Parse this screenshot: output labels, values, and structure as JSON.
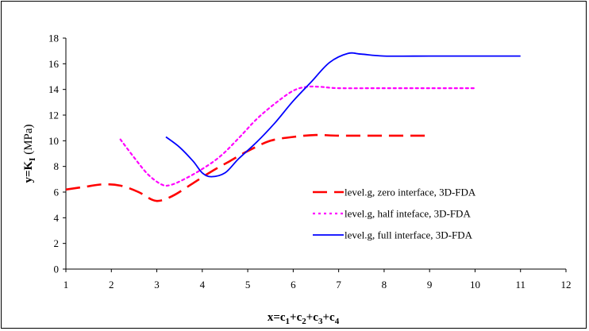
{
  "chart_data": {
    "type": "line",
    "title": "",
    "xlabel": {
      "main": "x=c",
      "parts": [
        [
          "1",
          "+c"
        ],
        [
          "2",
          "+c"
        ],
        [
          "3",
          "+c"
        ],
        [
          "4",
          ""
        ]
      ]
    },
    "ylabel": {
      "prefix": "y=K",
      "sub": "I",
      "suffix": " (MPa)"
    },
    "xlim": [
      1,
      12
    ],
    "ylim": [
      0,
      18
    ],
    "x_ticks": [
      1,
      2,
      3,
      4,
      5,
      6,
      7,
      8,
      9,
      10,
      11,
      12
    ],
    "y_ticks": [
      0,
      2,
      4,
      6,
      8,
      10,
      12,
      14,
      16,
      18
    ],
    "grid": false,
    "legend_position": "right-middle",
    "series": [
      {
        "name": "level.g, zero interface, 3D-FDA",
        "color": "#ff0000",
        "dash": "long-dash",
        "points": [
          [
            1.0,
            6.2
          ],
          [
            1.4,
            6.4
          ],
          [
            1.8,
            6.6
          ],
          [
            2.2,
            6.5
          ],
          [
            2.6,
            6.0
          ],
          [
            2.9,
            5.4
          ],
          [
            3.1,
            5.35
          ],
          [
            3.4,
            5.8
          ],
          [
            3.8,
            6.7
          ],
          [
            4.2,
            7.6
          ],
          [
            4.6,
            8.4
          ],
          [
            5.0,
            9.2
          ],
          [
            5.5,
            10.0
          ],
          [
            6.0,
            10.3
          ],
          [
            6.5,
            10.45
          ],
          [
            7.0,
            10.4
          ],
          [
            8.0,
            10.4
          ],
          [
            9.0,
            10.4
          ]
        ]
      },
      {
        "name": "level.g, half inteface, 3D-FDA",
        "color": "#ff00ff",
        "dash": "dotted",
        "points": [
          [
            2.2,
            10.1
          ],
          [
            2.5,
            8.7
          ],
          [
            2.8,
            7.4
          ],
          [
            3.1,
            6.6
          ],
          [
            3.3,
            6.55
          ],
          [
            3.6,
            7.0
          ],
          [
            4.0,
            7.8
          ],
          [
            4.4,
            8.8
          ],
          [
            4.8,
            10.2
          ],
          [
            5.2,
            11.7
          ],
          [
            5.6,
            12.9
          ],
          [
            6.0,
            13.9
          ],
          [
            6.3,
            14.2
          ],
          [
            6.6,
            14.2
          ],
          [
            7.0,
            14.1
          ],
          [
            8.0,
            14.1
          ],
          [
            9.0,
            14.1
          ],
          [
            10.0,
            14.1
          ]
        ]
      },
      {
        "name": "level.g, full interface, 3D-FDA",
        "color": "#0000ff",
        "dash": "solid",
        "points": [
          [
            3.2,
            10.3
          ],
          [
            3.5,
            9.5
          ],
          [
            3.8,
            8.4
          ],
          [
            4.0,
            7.5
          ],
          [
            4.2,
            7.2
          ],
          [
            4.5,
            7.5
          ],
          [
            4.8,
            8.6
          ],
          [
            5.2,
            9.9
          ],
          [
            5.6,
            11.4
          ],
          [
            6.0,
            13.1
          ],
          [
            6.4,
            14.6
          ],
          [
            6.8,
            16.1
          ],
          [
            7.2,
            16.8
          ],
          [
            7.5,
            16.75
          ],
          [
            8.0,
            16.6
          ],
          [
            9.0,
            16.6
          ],
          [
            10.0,
            16.6
          ],
          [
            11.0,
            16.6
          ]
        ]
      }
    ]
  }
}
